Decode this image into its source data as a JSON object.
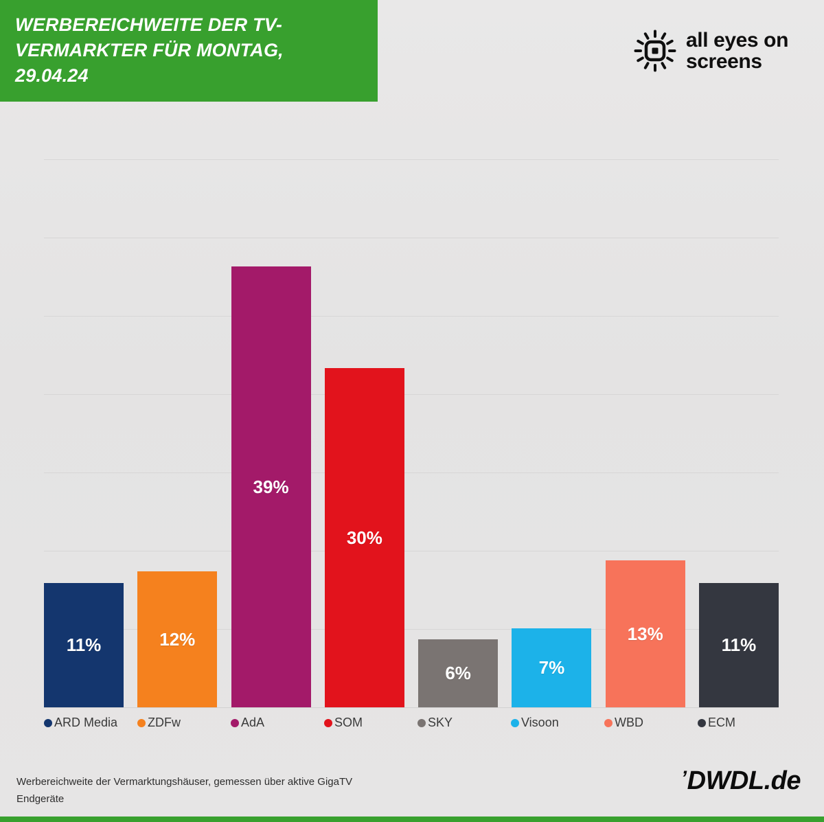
{
  "header": {
    "title_lines": [
      "WERBEREICHWEITE DER TV-",
      "VERMARKTER FÜR MONTAG,",
      "29.04.24"
    ],
    "logo_line1": "all eyes on",
    "logo_line2": "screens"
  },
  "chart_data": {
    "type": "bar",
    "title": "Werbereichweite der TV-Vermarkter für Montag, 29.04.24",
    "categories": [
      "ARD Media",
      "ZDFw",
      "AdA",
      "SOM",
      "SKY",
      "Visoon",
      "WBD",
      "ECM"
    ],
    "values": [
      11,
      12,
      39,
      30,
      6,
      7,
      13,
      11
    ],
    "labels": [
      "11%",
      "12%",
      "39%",
      "30%",
      "6%",
      "7%",
      "13%",
      "11%"
    ],
    "colors": [
      "#14366e",
      "#f5811e",
      "#a31a69",
      "#e2131c",
      "#7a7472",
      "#1cb2e9",
      "#f7735a",
      "#343740"
    ],
    "ylim": [
      0,
      45
    ],
    "grid": true,
    "legend_position": "bottom"
  },
  "footer": {
    "source_lines": [
      "Werbereichweite der Vermarktungshäuser, gemessen über aktive GigaTV",
      "Endgeräte"
    ],
    "brand_mark": "’",
    "brand": "DWDL.de"
  },
  "colors": {
    "banner_green": "#38a02e",
    "background": "#e5e4e4"
  }
}
